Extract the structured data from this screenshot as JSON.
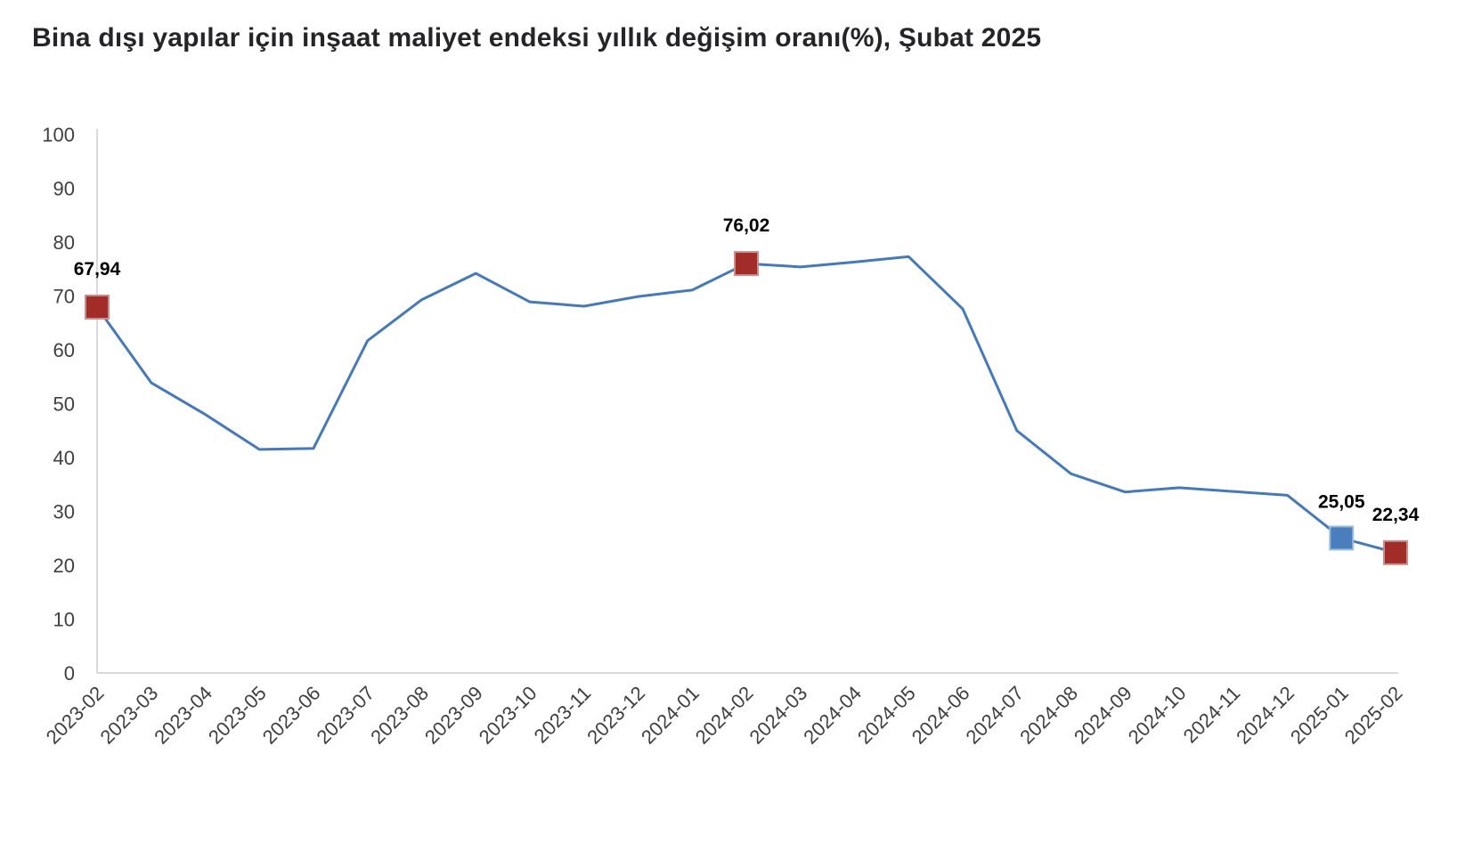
{
  "chart_data": {
    "type": "line",
    "title": "Bina dışı yapılar için inşaat maliyet endeksi yıllık değişim oranı(%), Şubat 2025",
    "x": [
      "2023-02",
      "2023-03",
      "2023-04",
      "2023-05",
      "2023-06",
      "2023-07",
      "2023-08",
      "2023-09",
      "2023-10",
      "2023-11",
      "2023-12",
      "2024-01",
      "2024-02",
      "2024-03",
      "2024-04",
      "2024-05",
      "2024-06",
      "2024-07",
      "2024-08",
      "2024-09",
      "2024-10",
      "2024-11",
      "2024-12",
      "2025-01",
      "2025-02"
    ],
    "values": [
      67.94,
      53.9,
      48.0,
      41.5,
      41.7,
      61.7,
      69.3,
      74.2,
      68.9,
      68.1,
      69.9,
      71.1,
      76.02,
      75.4,
      76.3,
      77.3,
      67.6,
      45.0,
      37.0,
      33.6,
      34.4,
      33.7,
      33.0,
      25.05,
      22.34
    ],
    "ylabel": "",
    "xlabel": "",
    "ylim": [
      0,
      100
    ],
    "ytick_step": 10,
    "grid": false,
    "legend": "none",
    "line_color": "#4679b8",
    "axis_color": "#d9d9d9",
    "highlights": [
      {
        "index": 0,
        "x": "2023-02",
        "value": 67.94,
        "label": "67,94",
        "color": "#a22c28",
        "border": "#c98e8b",
        "label_dy": -36
      },
      {
        "index": 12,
        "x": "2024-02",
        "value": 76.02,
        "label": "76,02",
        "color": "#a22c28",
        "border": "#c98e8b",
        "label_dy": -36
      },
      {
        "index": 23,
        "x": "2025-01",
        "value": 25.05,
        "label": "25,05",
        "color": "#4a7ebc",
        "border": "#9bbede",
        "label_dy": -34
      },
      {
        "index": 24,
        "x": "2025-02",
        "value": 22.34,
        "label": "22,34",
        "color": "#a22c28",
        "border": "#c98e8b",
        "label_dy": -36
      }
    ]
  }
}
